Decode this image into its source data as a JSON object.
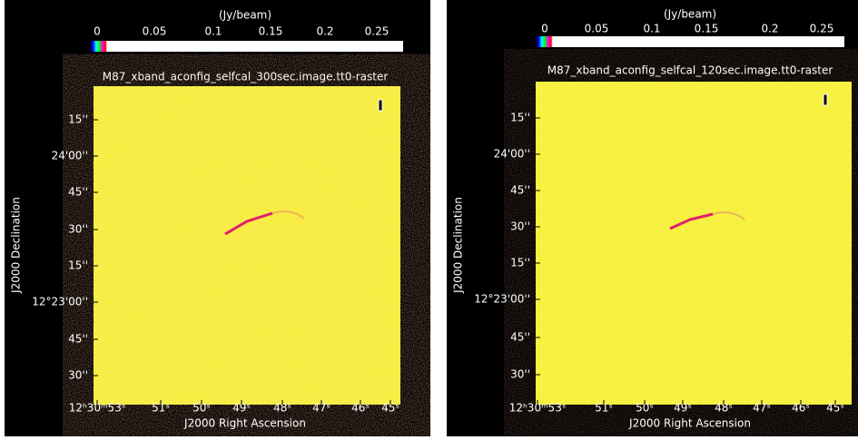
{
  "panels": [
    {
      "colorbar": {
        "label": "(Jy/beam)",
        "ticks": [
          0,
          0.05,
          0.1,
          0.15,
          0.2,
          0.25
        ]
      },
      "title": "M87_xband_aconfig_selfcal_300sec.image.tt0-raster",
      "y_tick_labels": [
        "15''",
        "24'00''",
        "45''",
        "30''",
        "15''",
        "12°23'00''",
        "45''",
        "30''"
      ],
      "x_tick_labels": [
        "12ʰ30ᵐ53ˢ",
        "51ˢ",
        "50ˢ",
        "49ˢ",
        "48ˢ",
        "47ˢ",
        "46ˢ",
        "45ˢ"
      ],
      "x_label": "J2000 Right Ascension",
      "y_label": "J2000 Declination"
    },
    {
      "colorbar": {
        "label": "(Jy/beam)",
        "ticks": [
          0,
          0.05,
          0.1,
          0.15,
          0.2,
          0.25
        ]
      },
      "title": "M87_xband_aconfig_selfcal_120sec.image.tt0-raster",
      "y_tick_labels": [
        "15''",
        "24'00''",
        "45''",
        "30''",
        "15''",
        "12°23'00''",
        "45''",
        "30''"
      ],
      "x_tick_labels": [
        "12ʰ30ᵐ53ˢ",
        "51ˢ",
        "50ˢ",
        "49ˢ",
        "48ˢ",
        "47ˢ",
        "46ˢ",
        "45ˢ"
      ],
      "x_label": "J2000 Right Ascension",
      "y_label": "J2000 Declination"
    }
  ]
}
